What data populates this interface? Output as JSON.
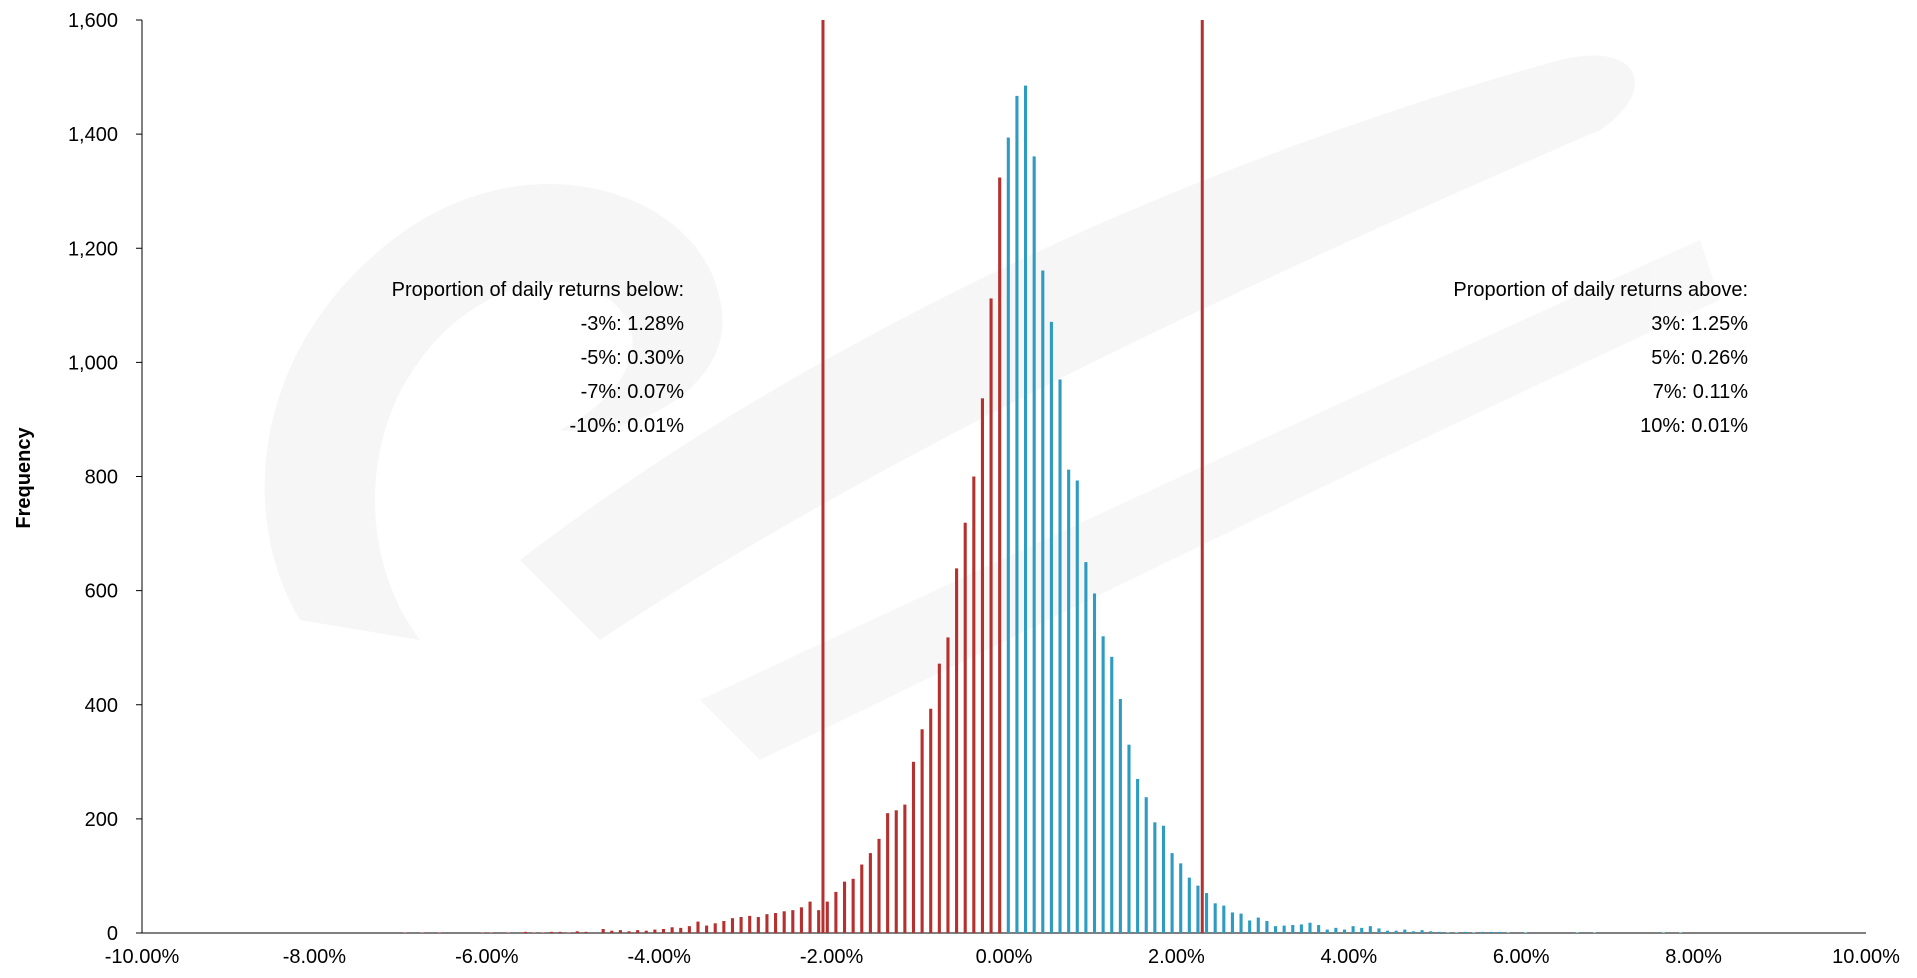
{
  "chart_data": {
    "type": "bar",
    "title": "",
    "xlabel": "",
    "ylabel": "Frequency",
    "xlim": [
      -10,
      10
    ],
    "ylim": [
      0,
      1600
    ],
    "grid": false,
    "x_ticks": [
      {
        "value": -10,
        "label": "-10.00%"
      },
      {
        "value": -8,
        "label": "-8.00%"
      },
      {
        "value": -6,
        "label": "-6.00%"
      },
      {
        "value": -4,
        "label": "-4.00%"
      },
      {
        "value": -2,
        "label": "-2.00%"
      },
      {
        "value": 0,
        "label": "0.00%"
      },
      {
        "value": 2,
        "label": "2.00%"
      },
      {
        "value": 4,
        "label": "4.00%"
      },
      {
        "value": 6,
        "label": "6.00%"
      },
      {
        "value": 8,
        "label": "8.00%"
      },
      {
        "value": 10,
        "label": "10.00%"
      }
    ],
    "y_ticks": [
      {
        "value": 0,
        "label": "0"
      },
      {
        "value": 200,
        "label": "200"
      },
      {
        "value": 400,
        "label": "400"
      },
      {
        "value": 600,
        "label": "600"
      },
      {
        "value": 800,
        "label": "800"
      },
      {
        "value": 1000,
        "label": "1,000"
      },
      {
        "value": 1200,
        "label": "1,200"
      },
      {
        "value": 1400,
        "label": "1,400"
      },
      {
        "value": 1600,
        "label": "1,600"
      }
    ],
    "bin_width": 0.1,
    "series": [
      {
        "color": "#B5312F",
        "bins": [
          {
            "x": -7.0,
            "y": 1
          },
          {
            "x": -6.8,
            "y": 1
          },
          {
            "x": -6.6,
            "y": 1
          },
          {
            "x": -6.1,
            "y": 1
          },
          {
            "x": -6.0,
            "y": 1
          },
          {
            "x": -5.8,
            "y": 1
          },
          {
            "x": -5.6,
            "y": 2
          },
          {
            "x": -5.5,
            "y": 1
          },
          {
            "x": -5.4,
            "y": 1
          },
          {
            "x": -5.3,
            "y": 2
          },
          {
            "x": -5.2,
            "y": 2
          },
          {
            "x": -5.1,
            "y": 1
          },
          {
            "x": -5.0,
            "y": 3
          },
          {
            "x": -4.9,
            "y": 2
          },
          {
            "x": -4.7,
            "y": 7
          },
          {
            "x": -4.6,
            "y": 4
          },
          {
            "x": -4.5,
            "y": 5
          },
          {
            "x": -4.4,
            "y": 3
          },
          {
            "x": -4.3,
            "y": 5
          },
          {
            "x": -4.2,
            "y": 4
          },
          {
            "x": -4.1,
            "y": 6
          },
          {
            "x": -4.0,
            "y": 7
          },
          {
            "x": -3.9,
            "y": 10
          },
          {
            "x": -3.8,
            "y": 9
          },
          {
            "x": -3.7,
            "y": 12
          },
          {
            "x": -3.6,
            "y": 20
          },
          {
            "x": -3.5,
            "y": 13
          },
          {
            "x": -3.4,
            "y": 17
          },
          {
            "x": -3.3,
            "y": 21
          },
          {
            "x": -3.2,
            "y": 26
          },
          {
            "x": -3.1,
            "y": 28
          },
          {
            "x": -3.0,
            "y": 30
          },
          {
            "x": -2.9,
            "y": 28
          },
          {
            "x": -2.8,
            "y": 33
          },
          {
            "x": -2.7,
            "y": 35
          },
          {
            "x": -2.6,
            "y": 38
          },
          {
            "x": -2.5,
            "y": 40
          },
          {
            "x": -2.4,
            "y": 45
          },
          {
            "x": -2.3,
            "y": 55
          },
          {
            "x": -2.2,
            "y": 40
          },
          {
            "x": -2.1,
            "y": 55
          },
          {
            "x": -2.0,
            "y": 72
          },
          {
            "x": -1.9,
            "y": 90
          },
          {
            "x": -1.8,
            "y": 95
          },
          {
            "x": -1.7,
            "y": 120
          },
          {
            "x": -1.6,
            "y": 140
          },
          {
            "x": -1.5,
            "y": 165
          },
          {
            "x": -1.4,
            "y": 210
          },
          {
            "x": -1.3,
            "y": 215
          },
          {
            "x": -1.2,
            "y": 225
          },
          {
            "x": -1.1,
            "y": 300
          },
          {
            "x": -1.0,
            "y": 357
          },
          {
            "x": -0.9,
            "y": 393
          },
          {
            "x": -0.8,
            "y": 472
          },
          {
            "x": -0.7,
            "y": 518
          },
          {
            "x": -0.6,
            "y": 639
          },
          {
            "x": -0.5,
            "y": 719
          },
          {
            "x": -0.4,
            "y": 800
          },
          {
            "x": -0.3,
            "y": 937
          },
          {
            "x": -0.2,
            "y": 1112
          },
          {
            "x": -0.1,
            "y": 1324
          }
        ]
      },
      {
        "color": "#2E9CC0",
        "bins": [
          {
            "x": 0.0,
            "y": 1394
          },
          {
            "x": 0.1,
            "y": 1467
          },
          {
            "x": 0.2,
            "y": 1485
          },
          {
            "x": 0.3,
            "y": 1361
          },
          {
            "x": 0.4,
            "y": 1161
          },
          {
            "x": 0.5,
            "y": 1071
          },
          {
            "x": 0.6,
            "y": 970
          },
          {
            "x": 0.7,
            "y": 812
          },
          {
            "x": 0.8,
            "y": 793
          },
          {
            "x": 0.9,
            "y": 650
          },
          {
            "x": 1.0,
            "y": 595
          },
          {
            "x": 1.1,
            "y": 520
          },
          {
            "x": 1.2,
            "y": 484
          },
          {
            "x": 1.3,
            "y": 410
          },
          {
            "x": 1.4,
            "y": 330
          },
          {
            "x": 1.5,
            "y": 270
          },
          {
            "x": 1.6,
            "y": 238
          },
          {
            "x": 1.7,
            "y": 194
          },
          {
            "x": 1.8,
            "y": 188
          },
          {
            "x": 1.9,
            "y": 140
          },
          {
            "x": 2.0,
            "y": 122
          },
          {
            "x": 2.1,
            "y": 97
          },
          {
            "x": 2.2,
            "y": 83
          },
          {
            "x": 2.3,
            "y": 70
          },
          {
            "x": 2.4,
            "y": 52
          },
          {
            "x": 2.5,
            "y": 48
          },
          {
            "x": 2.6,
            "y": 36
          },
          {
            "x": 2.7,
            "y": 34
          },
          {
            "x": 2.8,
            "y": 22
          },
          {
            "x": 2.9,
            "y": 27
          },
          {
            "x": 3.0,
            "y": 21
          },
          {
            "x": 3.1,
            "y": 12
          },
          {
            "x": 3.2,
            "y": 13
          },
          {
            "x": 3.3,
            "y": 14
          },
          {
            "x": 3.4,
            "y": 15
          },
          {
            "x": 3.5,
            "y": 18
          },
          {
            "x": 3.6,
            "y": 14
          },
          {
            "x": 3.7,
            "y": 6
          },
          {
            "x": 3.8,
            "y": 9
          },
          {
            "x": 3.9,
            "y": 6
          },
          {
            "x": 4.0,
            "y": 12
          },
          {
            "x": 4.1,
            "y": 9
          },
          {
            "x": 4.2,
            "y": 12
          },
          {
            "x": 4.3,
            "y": 8
          },
          {
            "x": 4.4,
            "y": 4
          },
          {
            "x": 4.5,
            "y": 4
          },
          {
            "x": 4.6,
            "y": 6
          },
          {
            "x": 4.7,
            "y": 3
          },
          {
            "x": 4.8,
            "y": 5
          },
          {
            "x": 4.9,
            "y": 3
          },
          {
            "x": 5.0,
            "y": 2
          },
          {
            "x": 5.1,
            "y": 1
          },
          {
            "x": 5.2,
            "y": 1
          },
          {
            "x": 5.3,
            "y": 2
          },
          {
            "x": 5.4,
            "y": 1
          },
          {
            "x": 5.5,
            "y": 2
          },
          {
            "x": 5.6,
            "y": 2
          },
          {
            "x": 5.7,
            "y": 2
          },
          {
            "x": 5.8,
            "y": 1
          },
          {
            "x": 6.0,
            "y": 1
          },
          {
            "x": 6.6,
            "y": 1
          },
          {
            "x": 6.8,
            "y": 1
          },
          {
            "x": 7.6,
            "y": 1
          },
          {
            "x": 7.8,
            "y": 1
          }
        ]
      }
    ],
    "vertical_lines": [
      {
        "x": -2.1,
        "color": "#B5312F"
      },
      {
        "x": 2.3,
        "color": "#B5312F"
      }
    ],
    "annotations": {
      "below": {
        "heading": "Proportion of daily returns below:",
        "rows": [
          "-3%:  1.28%",
          "-5%:  0.30%",
          "-7%:  0.07%",
          "-10%:  0.01%"
        ]
      },
      "above": {
        "heading": "Proportion of daily returns above:",
        "rows": [
          "3%:  1.25%",
          "5%:  0.26%",
          "7%:  0.11%",
          "10%:  0.01%"
        ]
      }
    }
  }
}
